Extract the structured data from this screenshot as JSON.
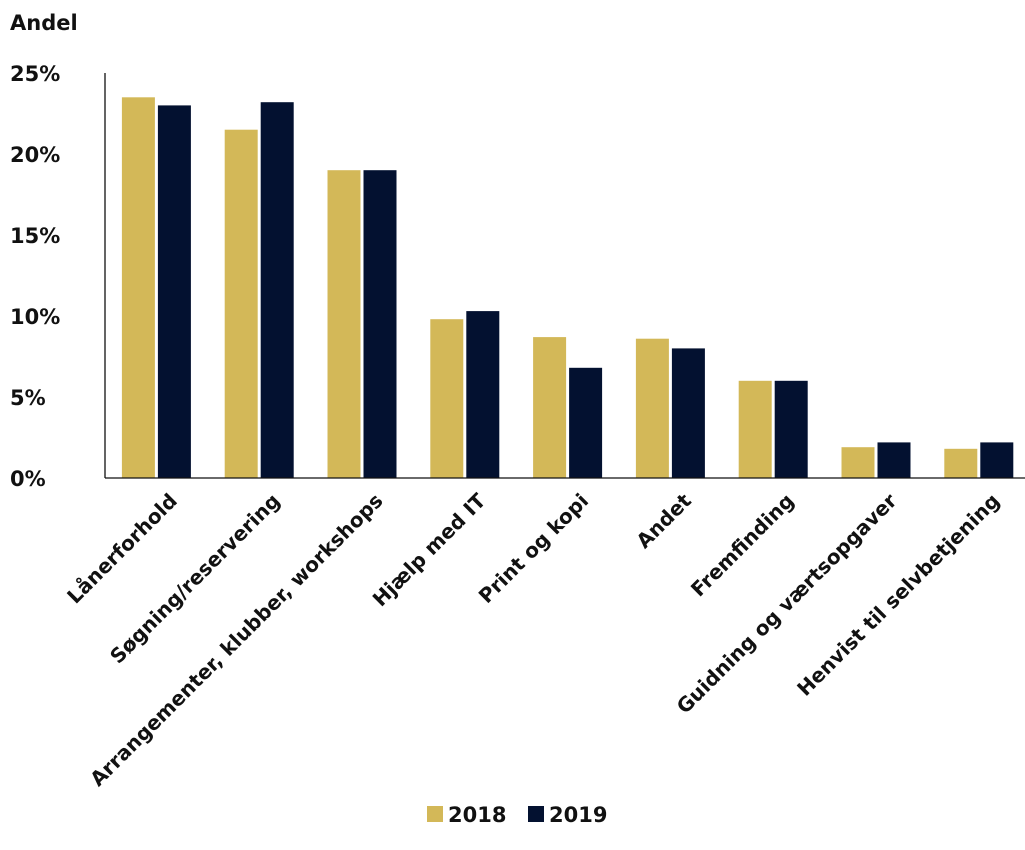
{
  "chart_data": {
    "type": "bar",
    "ylabel": "Andel",
    "xlabel": "",
    "ylim": [
      0,
      25
    ],
    "yticks": [
      0,
      5,
      10,
      15,
      20,
      25
    ],
    "ytick_labels": [
      "0%",
      "5%",
      "10%",
      "15%",
      "20%",
      "25%"
    ],
    "grid": false,
    "legend_position": "bottom-center",
    "categories": [
      "Lånerforhold",
      "Søgning/reservering",
      "Arrangementer, klubber, workshops",
      "Hjælp med IT",
      "Print og kopi",
      "Andet",
      "Fremfinding",
      "Guidning og værtsopgaver",
      "Henvist til selvbetjening"
    ],
    "series": [
      {
        "name": "2018",
        "color": "#D3B858",
        "values": [
          23.5,
          21.5,
          19.0,
          9.8,
          8.7,
          8.6,
          6.0,
          1.9,
          1.8
        ]
      },
      {
        "name": "2019",
        "color": "#031130",
        "values": [
          23.0,
          23.2,
          19.0,
          10.3,
          6.8,
          8.0,
          6.0,
          2.2,
          2.2
        ]
      }
    ]
  }
}
